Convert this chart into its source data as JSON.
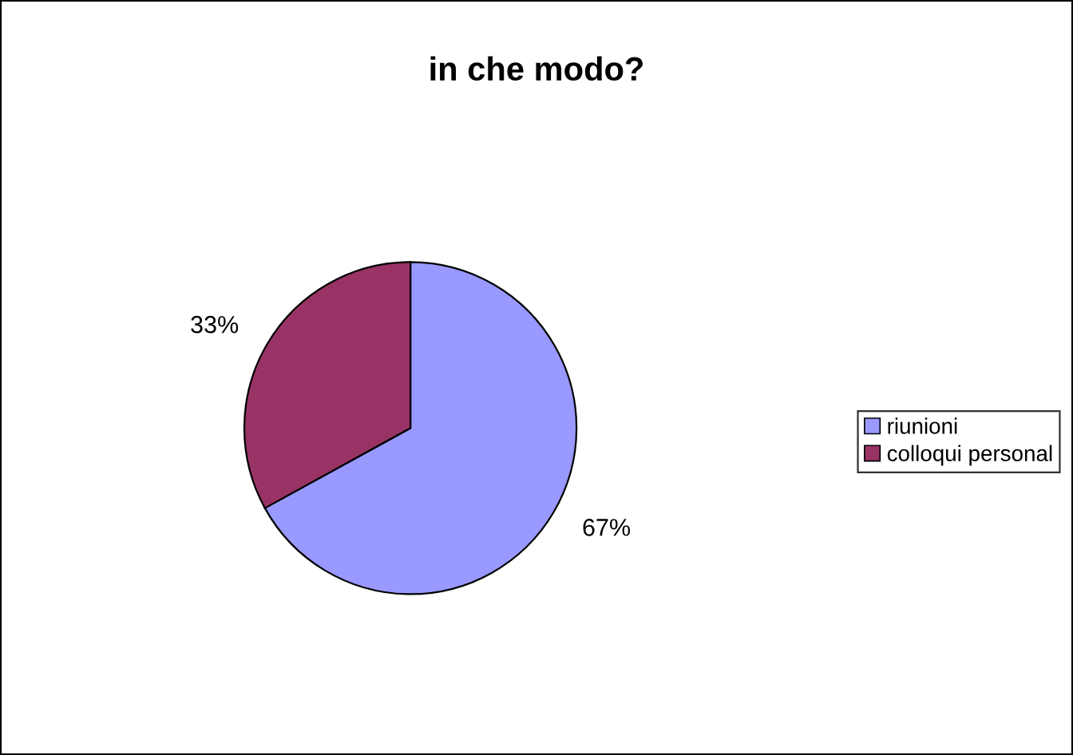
{
  "chart_data": {
    "type": "pie",
    "title": "in che modo?",
    "categories": [
      "riunioni",
      "colloqui personal"
    ],
    "values": [
      67,
      33
    ],
    "colors": [
      "#9999ff",
      "#993366"
    ],
    "value_labels": [
      "67%",
      "33%"
    ],
    "legend": "right"
  }
}
